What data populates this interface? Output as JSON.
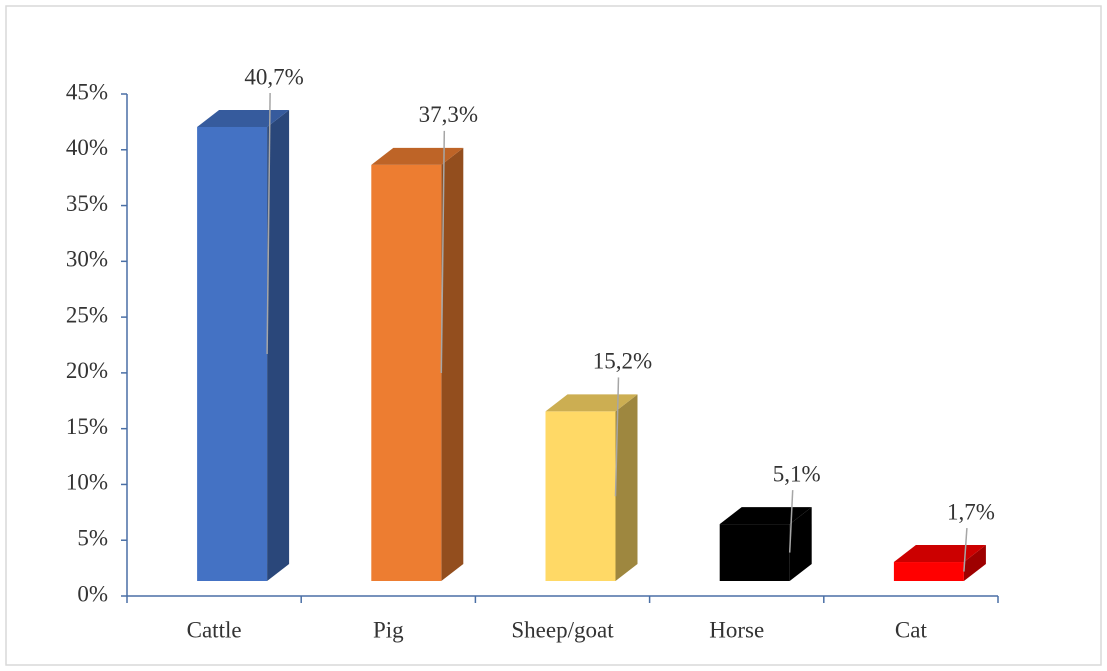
{
  "chart_data": {
    "type": "bar3d",
    "categories": [
      "Cattle",
      "Pig",
      "Sheep/goat",
      "Horse",
      "Cat"
    ],
    "values": [
      40.7,
      37.3,
      15.2,
      5.1,
      1.7
    ],
    "value_labels": [
      "40,7%",
      "37,3%",
      "15,2%",
      "5,1%",
      "1,7%"
    ],
    "colors": [
      "#4472c4",
      "#ed7d31",
      "#ffd966",
      "#000000",
      "#ff0000"
    ],
    "ylim": [
      0,
      45
    ],
    "yticks": [
      {
        "value": 0,
        "label": "0%"
      },
      {
        "value": 5,
        "label": "5%"
      },
      {
        "value": 10,
        "label": "10%"
      },
      {
        "value": 15,
        "label": "15%"
      },
      {
        "value": 20,
        "label": "20%"
      },
      {
        "value": 25,
        "label": "25%"
      },
      {
        "value": 30,
        "label": "30%"
      },
      {
        "value": 35,
        "label": "35%"
      },
      {
        "value": 40,
        "label": "40%"
      },
      {
        "value": 45,
        "label": "45%"
      }
    ],
    "grid": false
  }
}
